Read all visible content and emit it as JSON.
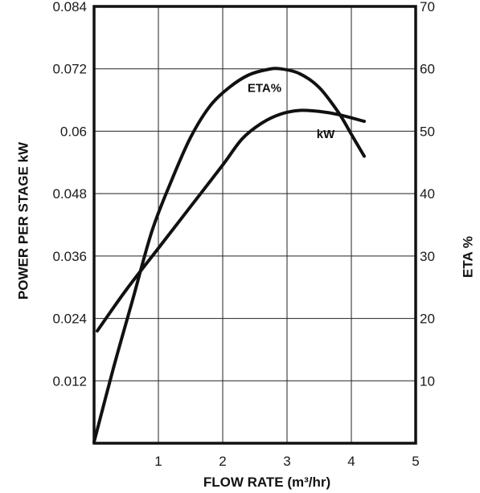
{
  "chart_data": {
    "type": "line",
    "xlabel": "FLOW RATE (m³/hr)",
    "ylabel_left": "POWER PER STAGE kW",
    "ylabel_right": "ETA %",
    "xlim": [
      0,
      5
    ],
    "ylim_left": [
      0,
      0.084
    ],
    "ylim_right": [
      0,
      70
    ],
    "x_ticks": [
      {
        "value": 1,
        "label": "1"
      },
      {
        "value": 2,
        "label": "2"
      },
      {
        "value": 3,
        "label": "3"
      },
      {
        "value": 4,
        "label": "4"
      },
      {
        "value": 5,
        "label": "5"
      }
    ],
    "y_left_ticks": [
      {
        "value": 0.012,
        "label": "0.012"
      },
      {
        "value": 0.024,
        "label": "0.024"
      },
      {
        "value": 0.036,
        "label": "0.036"
      },
      {
        "value": 0.048,
        "label": "0.048"
      },
      {
        "value": 0.06,
        "label": "0.06"
      },
      {
        "value": 0.072,
        "label": "0.072"
      },
      {
        "value": 0.084,
        "label": "0.084"
      }
    ],
    "y_right_ticks": [
      {
        "value": 10,
        "label": "10"
      },
      {
        "value": 20,
        "label": "20"
      },
      {
        "value": 30,
        "label": "30"
      },
      {
        "value": 40,
        "label": "40"
      },
      {
        "value": 50,
        "label": "50"
      },
      {
        "value": 60,
        "label": "60"
      },
      {
        "value": 70,
        "label": "70"
      }
    ],
    "grid": true,
    "series": [
      {
        "name": "kW",
        "axis": "left",
        "x": [
          0.05,
          0.5,
          1.0,
          1.5,
          2.0,
          2.3,
          2.6,
          2.9,
          3.2,
          3.5,
          3.8,
          4.2
        ],
        "y": [
          0.0216,
          0.0295,
          0.0375,
          0.0455,
          0.0535,
          0.0585,
          0.0615,
          0.0633,
          0.064,
          0.0638,
          0.0632,
          0.0619
        ]
      },
      {
        "name": "ETA%",
        "axis": "right",
        "x": [
          0.0,
          0.3,
          0.6,
          0.9,
          1.2,
          1.5,
          1.8,
          2.1,
          2.4,
          2.7,
          2.9,
          3.2,
          3.5,
          3.8,
          4.0,
          4.2
        ],
        "y": [
          0.2,
          12,
          23,
          34,
          42,
          49,
          54,
          57,
          59,
          59.9,
          60.0,
          59.2,
          57,
          53,
          49.5,
          46
        ]
      }
    ]
  }
}
